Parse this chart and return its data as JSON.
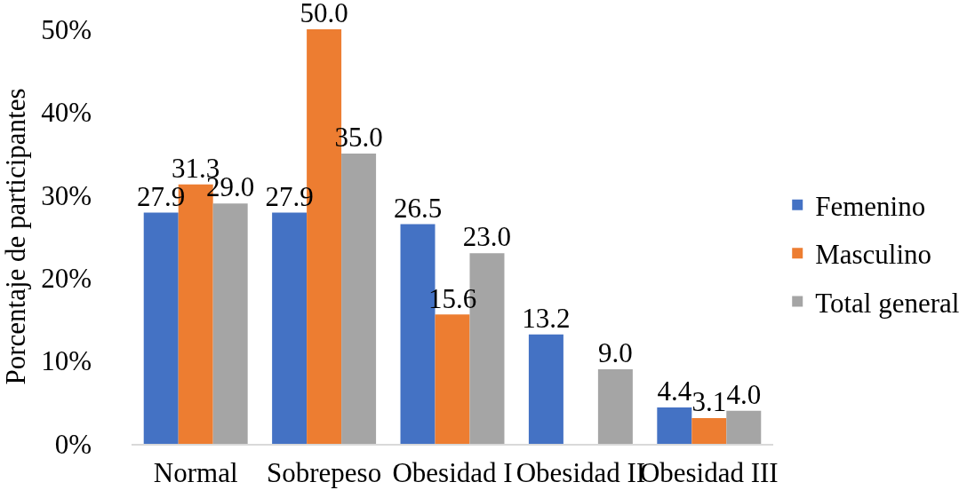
{
  "chart_data": {
    "type": "bar",
    "categories": [
      "Normal",
      "Sobrepeso",
      "Obesidad I",
      "Obesidad II",
      "Obesidad III"
    ],
    "series": [
      {
        "name": "Femenino",
        "color": "#4472c4",
        "values": [
          27.9,
          27.9,
          26.5,
          13.2,
          4.4
        ],
        "value_labels": [
          "27.9",
          "27.9",
          "26.5",
          "13.2",
          "4.4"
        ]
      },
      {
        "name": "Masculino",
        "color": "#ed7d31",
        "values": [
          31.3,
          50.0,
          15.6,
          null,
          3.1
        ],
        "value_labels": [
          "31.3",
          "50.0",
          "15.6",
          null,
          "3.1"
        ]
      },
      {
        "name": "Total general",
        "color": "#a5a5a5",
        "values": [
          29.0,
          35.0,
          23.0,
          9.0,
          4.0
        ],
        "value_labels": [
          "29.0",
          "35.0",
          "23.0",
          "9.0",
          "4.0"
        ]
      }
    ],
    "ylabel": "Porcentaje de participantes",
    "ylim": [
      0,
      50
    ],
    "yticks": [
      {
        "value": 0,
        "label": "0%"
      },
      {
        "value": 10,
        "label": "10%"
      },
      {
        "value": 20,
        "label": "20%"
      },
      {
        "value": 30,
        "label": "30%"
      },
      {
        "value": 40,
        "label": "40%"
      },
      {
        "value": 50,
        "label": "50%"
      }
    ],
    "grid": false,
    "legend": "right"
  }
}
